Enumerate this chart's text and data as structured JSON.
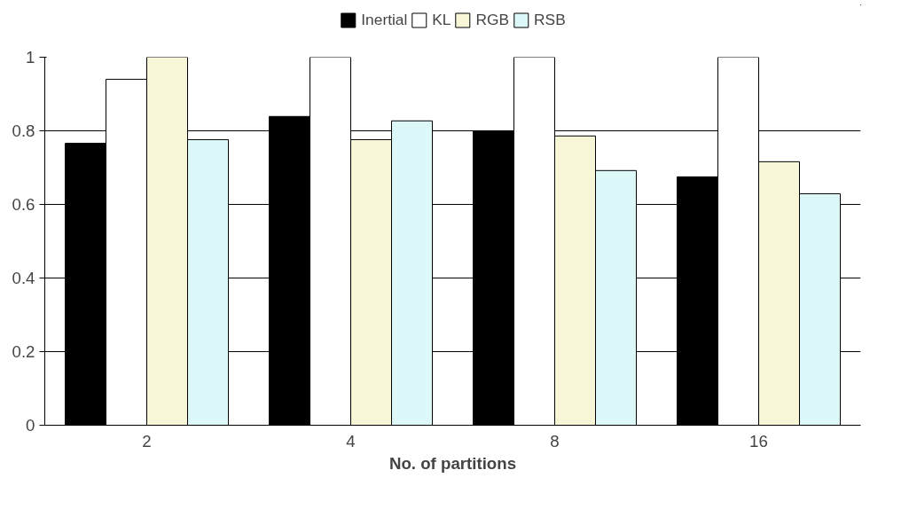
{
  "chart_data": {
    "type": "bar",
    "xlabel": "No. of partitions",
    "categories": [
      "2",
      "4",
      "8",
      "16"
    ],
    "series": [
      {
        "name": "Inertial",
        "color": "#000000",
        "values": [
          0.766,
          0.839,
          0.8,
          0.675
        ]
      },
      {
        "name": "KL",
        "color": "#ffffff",
        "values": [
          0.94,
          1,
          1,
          1
        ]
      },
      {
        "name": "RGB",
        "color": "#f7f7d8",
        "values": [
          1,
          0.776,
          0.786,
          0.716
        ]
      },
      {
        "name": "RSB",
        "color": "#dcf8f8",
        "values": [
          0.776,
          0.827,
          0.692,
          0.629
        ]
      }
    ],
    "ylim": [
      0,
      1
    ],
    "yticks": [
      0,
      0.2,
      0.4,
      0.6,
      0.8,
      1
    ],
    "grid": "y",
    "legend": "top"
  }
}
